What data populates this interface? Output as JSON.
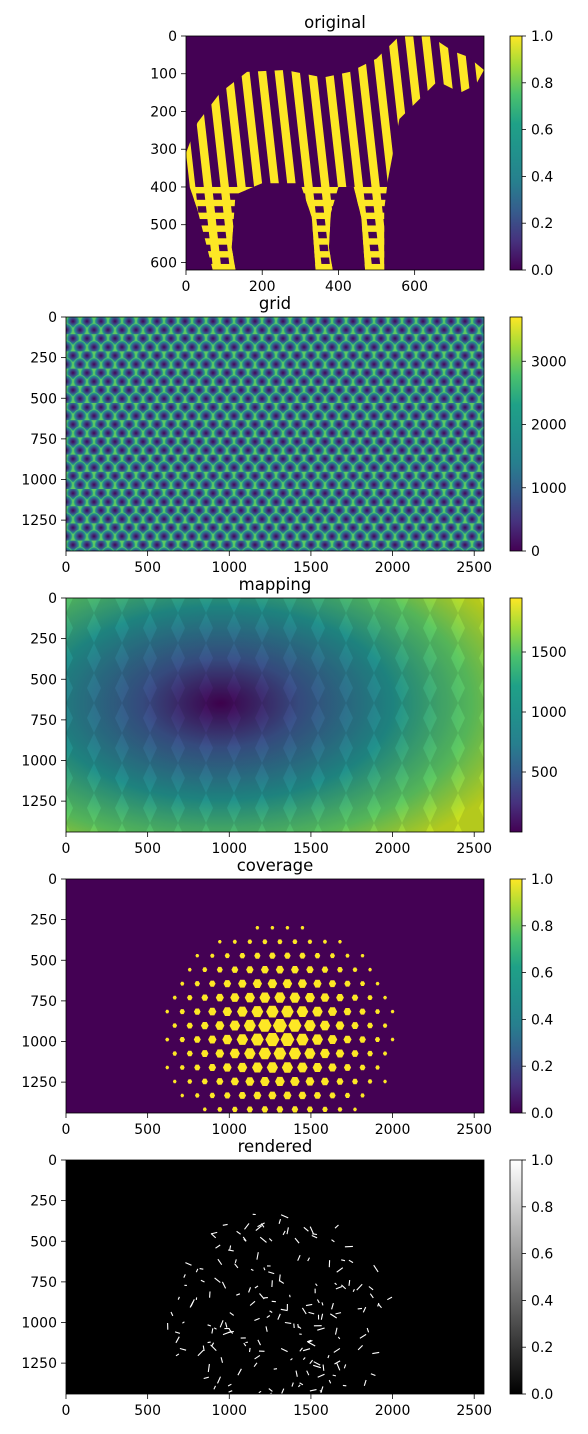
{
  "chart_data": [
    {
      "type": "heatmap",
      "title": "original",
      "xlabel": "",
      "ylabel": "",
      "image_extent": {
        "x": [
          0,
          782
        ],
        "y": [
          620,
          0
        ]
      },
      "xticks": [
        0,
        200,
        400,
        600
      ],
      "yticks": [
        0,
        100,
        200,
        300,
        400,
        500,
        600
      ],
      "colormap": "viridis",
      "color_range": [
        0,
        1
      ],
      "colorbar_ticks": [
        "0.0",
        "0.2",
        "0.4",
        "0.6",
        "0.8",
        "1.0"
      ],
      "content": "binary zebra silhouette with stripes (value 1 = yellow, 0 = purple)"
    },
    {
      "type": "heatmap",
      "title": "grid",
      "xlabel": "",
      "ylabel": "",
      "image_extent": {
        "x": [
          0,
          2560
        ],
        "y": [
          1440,
          0
        ]
      },
      "xticks": [
        0,
        500,
        1000,
        1500,
        2000,
        2500
      ],
      "yticks": [
        0,
        250,
        500,
        750,
        1000,
        1250
      ],
      "colormap": "viridis",
      "color_range": [
        0,
        3700
      ],
      "colorbar_ticks": [
        "0",
        "1000",
        "2000",
        "3000"
      ],
      "content": "hexagonal cell grid, distance to nearest cell center (≈30 columns × 14 rows)"
    },
    {
      "type": "heatmap",
      "title": "mapping",
      "xlabel": "",
      "ylabel": "",
      "image_extent": {
        "x": [
          0,
          2560
        ],
        "y": [
          1440,
          0
        ]
      },
      "xticks": [
        0,
        500,
        1000,
        1500,
        2000,
        2500
      ],
      "yticks": [
        0,
        250,
        500,
        750,
        1000,
        1250
      ],
      "colormap": "viridis",
      "color_range": [
        0,
        1950
      ],
      "colorbar_ticks": [
        "500",
        "1000",
        "1500"
      ],
      "content": "per-cell radial distance from a center near (900, 650)"
    },
    {
      "type": "heatmap",
      "title": "coverage",
      "xlabel": "",
      "ylabel": "",
      "image_extent": {
        "x": [
          0,
          2560
        ],
        "y": [
          1440,
          0
        ]
      },
      "xticks": [
        0,
        500,
        1000,
        1500,
        2000,
        2500
      ],
      "yticks": [
        0,
        250,
        500,
        750,
        1000,
        1250
      ],
      "colormap": "viridis",
      "color_range": [
        0,
        1
      ],
      "colorbar_ticks": [
        "0.0",
        "0.2",
        "0.4",
        "0.6",
        "0.8",
        "1.0"
      ],
      "content": "binary coverage of hex cells within x≈620–2020, y≈300–1440, centered near (1300, 950)"
    },
    {
      "type": "heatmap",
      "title": "rendered",
      "xlabel": "",
      "ylabel": "",
      "image_extent": {
        "x": [
          0,
          2560
        ],
        "y": [
          1440,
          0
        ]
      },
      "xticks": [
        0,
        500,
        1000,
        1500,
        2000,
        2500
      ],
      "yticks": [
        0,
        250,
        500,
        750,
        1000,
        1250
      ],
      "colormap": "gray",
      "color_range": [
        0,
        1
      ],
      "colorbar_ticks": [
        "0.0",
        "0.2",
        "0.4",
        "0.6",
        "0.8",
        "1.0"
      ],
      "content": "sparse white stroke fragments on black inside the covered region"
    }
  ]
}
